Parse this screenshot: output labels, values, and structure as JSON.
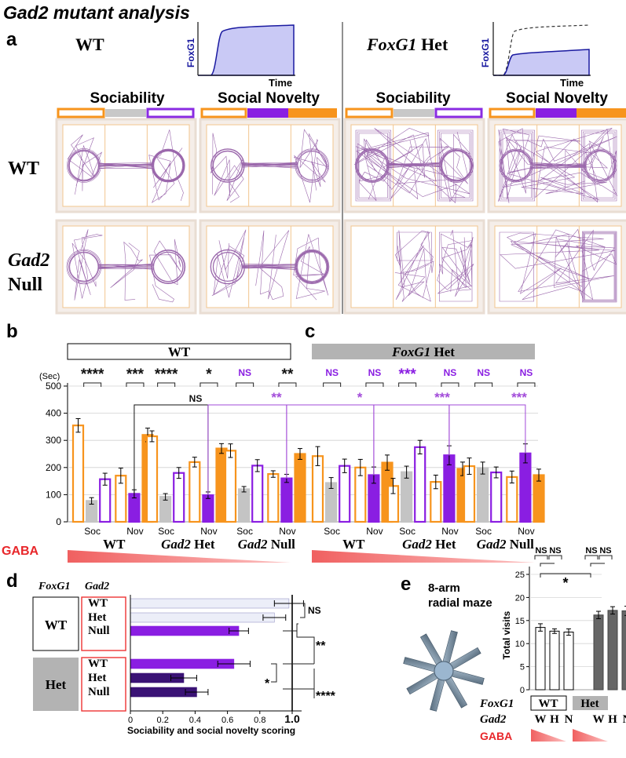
{
  "figure": {
    "title": "Gad2 mutant analysis",
    "panel_a": {
      "letter": "a",
      "wt_header": "WT",
      "het_header_italic": "FoxG1",
      "het_header_rest": " Het",
      "axis_y": "FoxG1",
      "axis_x": "Time",
      "sociability": "Sociability",
      "social_novelty": "Social Novelty",
      "row_wt": "WT",
      "row_null_italic": "Gad2",
      "row_null_rest": "Null"
    },
    "panel_b": {
      "letter": "b",
      "header": "WT",
      "sec": "(Sec)",
      "yticks": [
        "0",
        "100",
        "200",
        "300",
        "400",
        "500"
      ],
      "soc": "Soc",
      "nov": "Nov",
      "groups": [
        "WT",
        "Gad2 Het",
        "Gad2 Null"
      ],
      "group_italic": [
        "",
        "Gad2",
        "Gad2"
      ],
      "group_rest": [
        "WT",
        " Het",
        " Null"
      ],
      "gaba": "GABA",
      "sig": [
        "****",
        "***",
        "****",
        "*",
        "NS",
        "**"
      ],
      "bracket_ns": "NS",
      "bracket_sig": "**"
    },
    "panel_c": {
      "letter": "c",
      "header_italic": "FoxG1",
      "header_rest": " Het",
      "soc": "Soc",
      "nov": "Nov",
      "group_italic": [
        "",
        "Gad2",
        "Gad2"
      ],
      "group_rest": [
        "WT",
        " Het",
        " Null"
      ],
      "sig": [
        "NS",
        "NS",
        "***",
        "NS",
        "NS",
        "NS"
      ],
      "bracket_sig": [
        "*",
        "***",
        "***"
      ]
    },
    "panel_d": {
      "letter": "d",
      "col_foxg1": "FoxG1",
      "col_gad2": "Gad2",
      "box_wt": "WT",
      "box_het": "Het",
      "rows": [
        "WT",
        "Het",
        "Null",
        "WT",
        "Het",
        "Null"
      ],
      "xticks": [
        "0",
        "0.2",
        "0.4",
        "0.6",
        "0.8",
        "1.0"
      ],
      "xlabel": "Sociability and social novelty scoring",
      "sig": [
        "NS",
        "**",
        "****",
        "*"
      ]
    },
    "panel_e": {
      "letter": "e",
      "maze_line1": "8-arm",
      "maze_line2": "radial maze",
      "ylabel": "Total visits",
      "yticks": [
        "0",
        "5",
        "10",
        "15",
        "20",
        "25"
      ],
      "row_foxg1": "FoxG1",
      "row_gad2": "Gad2",
      "box_wt": "WT",
      "box_het": "Het",
      "genotypes": [
        "W",
        "H",
        "N",
        "W",
        "H",
        "N"
      ],
      "gaba": "GABA",
      "sig": [
        "NS",
        "NS",
        "NS",
        "NS",
        "*"
      ]
    }
  },
  "chart_data": [
    {
      "type": "bar",
      "title": "Panel b: time in chamber (WT FoxG1)",
      "ylabel": "(Sec)",
      "ylim": [
        0,
        500
      ],
      "categories": [
        "WT Soc",
        "WT Nov",
        "Gad2 Het Soc",
        "Gad2 Het Nov",
        "Gad2 Null Soc",
        "Gad2 Null Nov"
      ],
      "series": [
        {
          "name": "left chamber (orange)",
          "values": [
            355,
            170,
            315,
            220,
            262,
            176
          ],
          "errors": [
            25,
            28,
            20,
            18,
            25,
            12
          ]
        },
        {
          "name": "center (gray)",
          "values": [
            77,
            null,
            92,
            null,
            120,
            null
          ],
          "errors": [
            12,
            null,
            12,
            null,
            10,
            null
          ]
        },
        {
          "name": "right chamber (purple)",
          "values": [
            157,
            103,
            180,
            98,
            207,
            160
          ],
          "errors": [
            22,
            15,
            20,
            12,
            22,
            15
          ]
        },
        {
          "name": "novel/familiar (orange filled)",
          "values": [
            null,
            320,
            null,
            270,
            null,
            250
          ],
          "errors": [
            null,
            25,
            null,
            18,
            null,
            20
          ]
        }
      ]
    },
    {
      "type": "bar",
      "title": "Panel c: time in chamber (FoxG1 Het)",
      "ylim": [
        0,
        500
      ],
      "categories": [
        "WT Soc",
        "WT Nov",
        "Gad2 Het Soc",
        "Gad2 Het Nov",
        "Gad2 Null Soc",
        "Gad2 Null Nov"
      ],
      "series": [
        {
          "name": "left chamber (orange)",
          "values": [
            242,
            200,
            132,
            147,
            205,
            165
          ],
          "errors": [
            35,
            30,
            28,
            25,
            30,
            22
          ]
        },
        {
          "name": "center (gray)",
          "values": [
            143,
            null,
            183,
            null,
            198,
            null
          ],
          "errors": [
            20,
            null,
            22,
            null,
            22,
            null
          ]
        },
        {
          "name": "right chamber (purple)",
          "values": [
            206,
            172,
            275,
            245,
            182,
            252
          ],
          "errors": [
            25,
            30,
            25,
            35,
            20,
            35
          ]
        },
        {
          "name": "novel/familiar (orange filled)",
          "values": [
            null,
            218,
            null,
            195,
            null,
            172
          ],
          "errors": [
            null,
            28,
            null,
            25,
            null,
            22
          ]
        }
      ]
    },
    {
      "type": "bar",
      "title": "Panel d: Sociability and social novelty scoring",
      "xlabel": "Sociability and social novelty scoring",
      "xlim": [
        0,
        1.0
      ],
      "categories": [
        "WT/WT",
        "WT/Het",
        "WT/Null",
        "Het/WT",
        "Het/Het",
        "Het/Null"
      ],
      "values": [
        0.98,
        0.89,
        0.67,
        0.64,
        0.33,
        0.41
      ],
      "errors": [
        0.09,
        0.07,
        0.06,
        0.1,
        0.08,
        0.07
      ]
    },
    {
      "type": "bar",
      "title": "Panel e: 8-arm radial maze",
      "ylabel": "Total visits",
      "ylim": [
        0,
        25
      ],
      "categories": [
        "WT W",
        "WT H",
        "WT N",
        "Het W",
        "Het H",
        "Het N"
      ],
      "values": [
        13.5,
        12.7,
        12.5,
        16.2,
        17.2,
        17.1
      ],
      "errors": [
        0.8,
        0.5,
        0.7,
        0.8,
        0.8,
        1.0
      ]
    }
  ]
}
